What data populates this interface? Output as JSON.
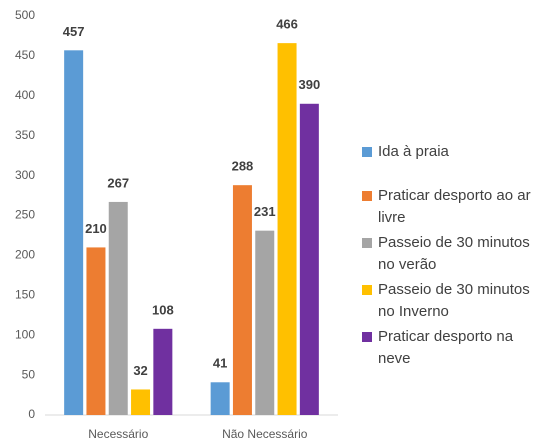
{
  "chart_data": {
    "type": "bar",
    "categories": [
      "Necessário",
      "Não Necessário"
    ],
    "series": [
      {
        "name": "Ida à praia",
        "color": "#5b9bd5",
        "values": [
          457,
          41
        ]
      },
      {
        "name": "Praticar desporto ao ar livre",
        "color": "#ed7d31",
        "values": [
          210,
          288
        ]
      },
      {
        "name": "Passeio de 30 minutos no verão",
        "color": "#a5a5a5",
        "values": [
          267,
          231
        ]
      },
      {
        "name": "Passeio de 30 minutos no Inverno",
        "color": "#ffc000",
        "values": [
          32,
          466
        ]
      },
      {
        "name": "Praticar desporto na neve",
        "color": "#7030a0",
        "values": [
          108,
          390
        ]
      }
    ],
    "ylim": [
      0,
      500
    ],
    "yticks": [
      0,
      50,
      100,
      150,
      200,
      250,
      300,
      350,
      400,
      450,
      500
    ],
    "grid": false,
    "legend": "right"
  }
}
